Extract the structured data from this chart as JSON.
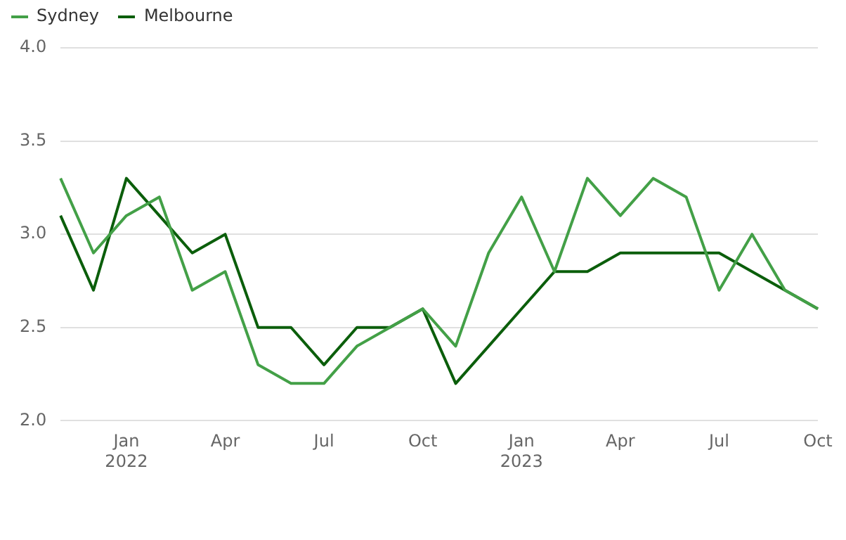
{
  "chart_data": {
    "type": "line",
    "categories": [
      null,
      null,
      "Jan\n2022",
      null,
      null,
      "Apr",
      null,
      null,
      "Jul",
      null,
      null,
      "Oct",
      null,
      null,
      "Jan\n2023",
      null,
      null,
      "Apr",
      null,
      null,
      "Jul",
      null,
      null,
      "Oct"
    ],
    "series": [
      {
        "name": "Sydney",
        "color": "#43a047",
        "values": [
          3.3,
          2.9,
          3.1,
          3.2,
          2.7,
          2.8,
          2.3,
          2.2,
          2.2,
          2.4,
          2.5,
          2.6,
          2.4,
          2.9,
          3.2,
          2.8,
          3.3,
          3.1,
          3.3,
          3.2,
          2.7,
          3.0,
          2.7,
          2.6
        ]
      },
      {
        "name": "Melbourne",
        "color": "#0b5e0b",
        "values": [
          3.1,
          2.7,
          3.3,
          3.1,
          2.9,
          3.0,
          2.5,
          2.5,
          2.3,
          2.5,
          2.5,
          2.6,
          2.2,
          2.4,
          2.6,
          2.8,
          2.8,
          2.9,
          2.9,
          2.9,
          2.9,
          2.8,
          2.7,
          2.6
        ]
      }
    ],
    "ylim": [
      2.0,
      4.0
    ],
    "yticks": [
      {
        "value": 2.0,
        "label": "2.0"
      },
      {
        "value": 2.5,
        "label": "2.5"
      },
      {
        "value": 3.0,
        "label": "3.0"
      },
      {
        "value": 3.5,
        "label": "3.5"
      },
      {
        "value": 4.0,
        "label": "4.0"
      }
    ],
    "grid": "y",
    "legend": "top left",
    "marker": "none",
    "line_style": "solid"
  }
}
